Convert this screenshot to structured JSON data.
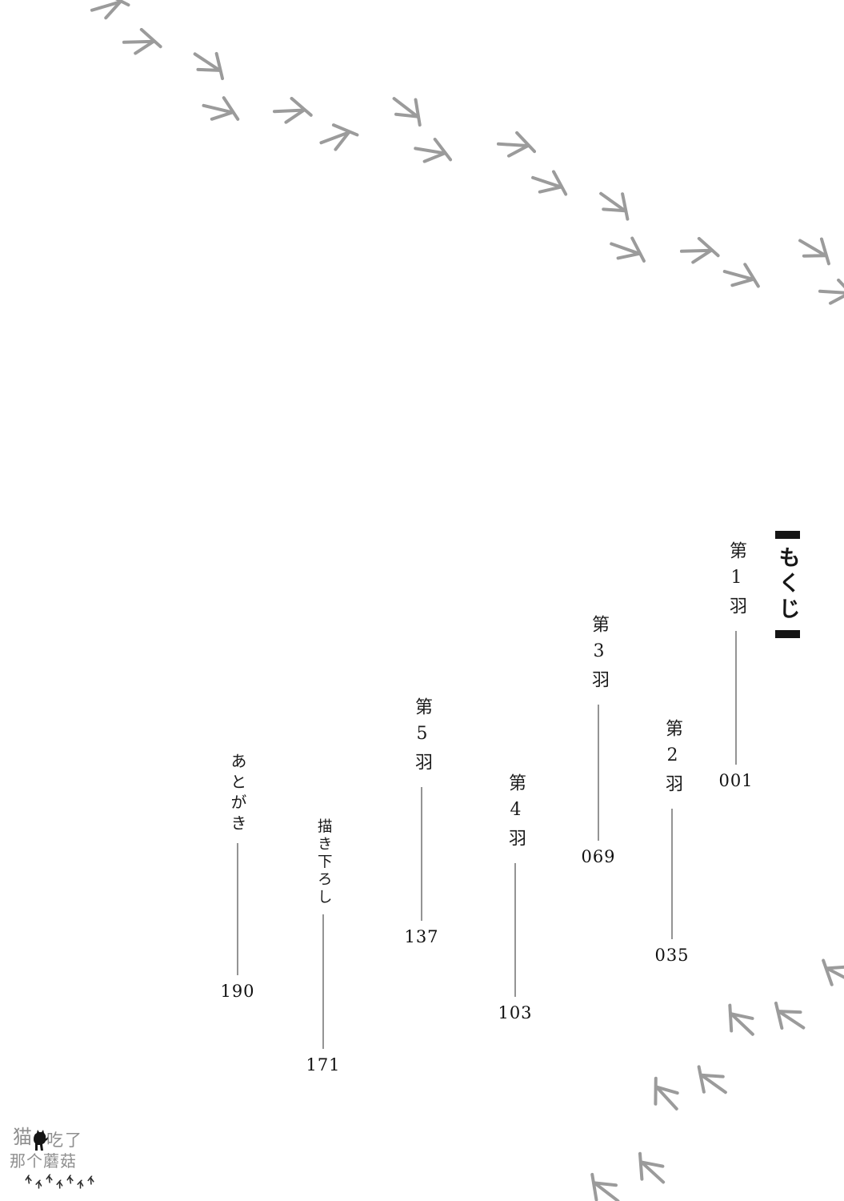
{
  "toc": {
    "title": "もくじ",
    "entries": [
      {
        "label": "第1羽",
        "page": "001"
      },
      {
        "label": "第2羽",
        "page": "035"
      },
      {
        "label": "第3羽",
        "page": "069"
      },
      {
        "label": "第4羽",
        "page": "103"
      },
      {
        "label": "第5羽",
        "page": "137"
      },
      {
        "label": "描き下ろし",
        "page": "171"
      },
      {
        "label": "あとがき",
        "page": "190"
      }
    ]
  },
  "watermark": {
    "line1_prefix": "猫",
    "line1_suffix": "吃了",
    "line2": "那个蘑菇",
    "icon": "cat-silhouette-icon"
  },
  "decor": {
    "footprint_icon": "bird-footprint-icon",
    "footprint_color": "#9b9b9b",
    "tiny_footprint_color": "#2e2e2e"
  },
  "colors": {
    "background": "#ffffff",
    "text": "#1b1b1b",
    "line": "#949494",
    "title_bar": "#141414"
  }
}
